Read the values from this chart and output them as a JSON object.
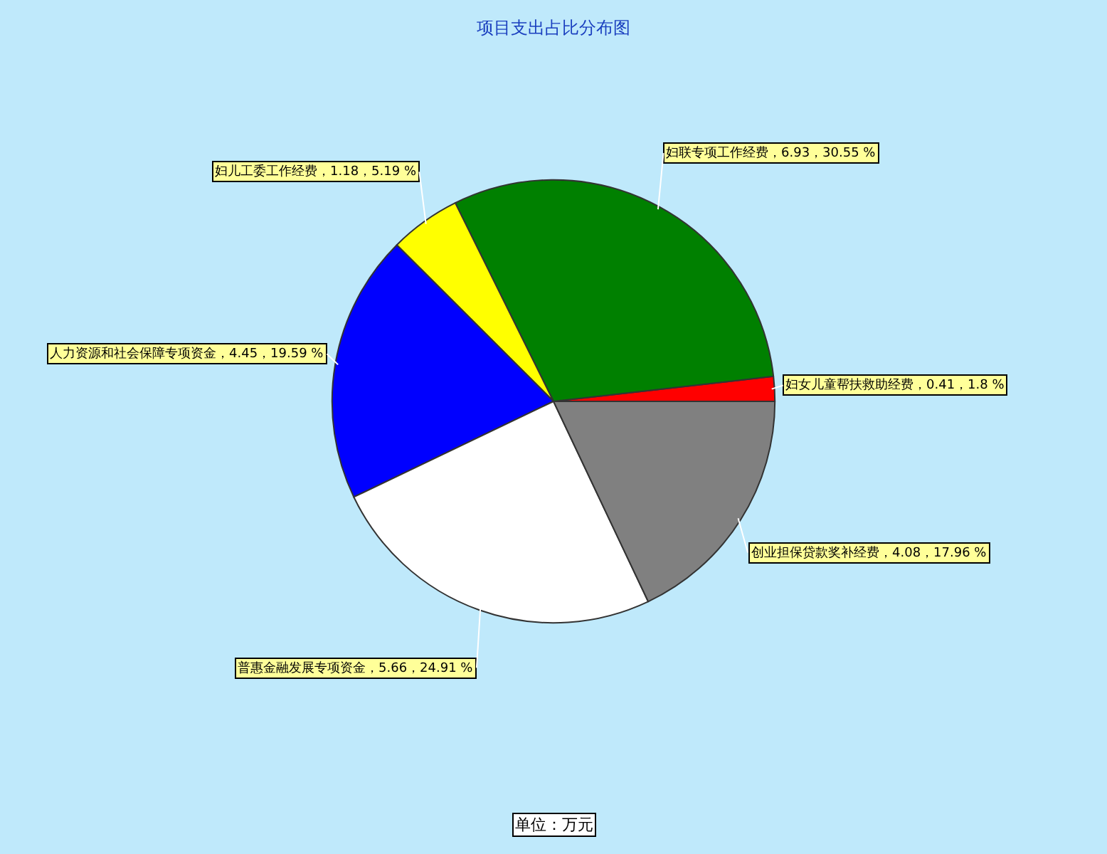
{
  "chart_data": {
    "type": "pie",
    "title": "项目支出占比分布图",
    "categories": [
      "妇女儿童帮扶救助经费",
      "妇联专项工作经费",
      "妇儿工委工作经费",
      "人力资源和社会保障专项资金",
      "普惠金融发展专项资金",
      "创业担保贷款奖补经费"
    ],
    "values": [
      0.41,
      6.93,
      1.18,
      4.45,
      5.66,
      4.08
    ],
    "value_labels": [
      "0.41，1.8 %",
      "6.93，30.55 %",
      "1.18，5.19 %",
      "4.45，19.59 %",
      "5.66，24.91 %",
      "4.08，17.96 %"
    ],
    "colors": [
      "#ff0000",
      "#008000",
      "#ffff00",
      "#0000ff",
      "#ffffff",
      "#808080"
    ],
    "annotations": [
      "单位：万元"
    ]
  }
}
